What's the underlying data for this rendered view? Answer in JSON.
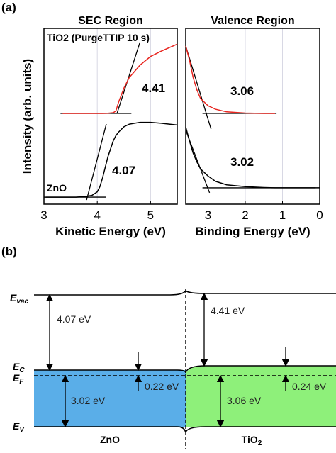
{
  "panels": [
    "(a)",
    "(b)"
  ],
  "chart_data": [
    {
      "type": "line",
      "title": "SEC Region",
      "xlabel": "Kinetic Energy (eV)",
      "ylabel": "Intensity (arb. units)",
      "x": [
        3,
        3.35,
        3.6,
        3.8,
        3.9,
        4,
        4.05,
        4.1,
        4.2,
        4.3,
        4.35,
        4.4,
        4.5,
        4.6,
        4.8,
        5,
        5.2,
        5.5
      ],
      "series": [
        {
          "name": "TiO2 (PurgeTTIP 10 s)",
          "color": "#e8251f",
          "values": [
            null,
            0.516,
            0.516,
            0.516,
            0.516,
            0.516,
            0.516,
            0.516,
            0.517,
            0.52,
            0.53,
            0.58,
            0.66,
            0.72,
            0.79,
            0.84,
            0.87,
            0.91
          ]
        },
        {
          "name": "ZnO",
          "color": "#000000",
          "values": [
            0.04,
            0.04,
            0.04,
            0.045,
            0.05,
            0.07,
            0.1,
            0.15,
            0.27,
            0.36,
            0.39,
            0.41,
            0.44,
            0.455,
            0.465,
            0.465,
            0.46,
            0.45
          ]
        }
      ],
      "fits": [
        {
          "x": [
            4.37,
            4.8
          ],
          "values": [
            0.516,
            0.92
          ]
        },
        {
          "x": [
            3.31,
            4.64
          ],
          "values": [
            0.516,
            0.516
          ]
        },
        {
          "x": [
            3.8,
            4.17
          ],
          "values": [
            0.024,
            0.456
          ]
        },
        {
          "x": [
            3.04,
            4.17
          ],
          "values": [
            0.04,
            0.04
          ]
        }
      ],
      "annotations": [
        "4.41",
        "4.07"
      ],
      "xlim": [
        3,
        5.5
      ],
      "xticks": [
        3,
        4,
        5
      ],
      "ylim": [
        0,
        1
      ],
      "grid": true
    },
    {
      "type": "line",
      "title": "Valence Region",
      "xlabel": "Binding Energy (eV)",
      "x": [
        3.6,
        3.5,
        3.4,
        3.3,
        3.2,
        3.0,
        2.8,
        2.5,
        2.0,
        1.5,
        1.2,
        0.5,
        0
      ],
      "series": [
        {
          "color": "#e8251f",
          "values": [
            0.9,
            0.82,
            0.72,
            0.65,
            0.6,
            0.56,
            0.54,
            0.525,
            0.518,
            0.516,
            0.516,
            null,
            null
          ]
        },
        {
          "color": "#000000",
          "values": [
            0.44,
            0.36,
            0.29,
            0.24,
            0.2,
            0.16,
            0.13,
            0.11,
            0.1,
            0.095,
            0.093,
            0.093,
            0.093
          ]
        }
      ],
      "fits": [
        {
          "x": [
            3.6,
            2.92
          ],
          "values": [
            0.9,
            0.427
          ]
        },
        {
          "x": [
            3.15,
            1.16
          ],
          "values": [
            0.516,
            0.516
          ]
        },
        {
          "x": [
            3.59,
            2.96
          ],
          "values": [
            0.415,
            0.065
          ]
        },
        {
          "x": [
            3.15,
            0.11
          ],
          "values": [
            0.093,
            0.093
          ]
        }
      ],
      "annotations": [
        "3.06",
        "3.02"
      ],
      "xlim": [
        3.6,
        0
      ],
      "xticks": [
        3,
        2,
        1,
        0
      ],
      "ylim": [
        0,
        1
      ],
      "grid": true
    }
  ],
  "diagram": {
    "levels": [
      {
        "symbol": "E",
        "sub": "vac"
      },
      {
        "symbol": "E",
        "sub": "C"
      },
      {
        "symbol": "E",
        "sub": "F"
      },
      {
        "symbol": "E",
        "sub": "V"
      }
    ],
    "materials": [
      {
        "name": "ZnO"
      },
      {
        "name": "TiO",
        "sub": "2"
      }
    ],
    "energies": [
      "4.07 eV",
      "3.02 eV",
      "0.22 eV",
      "4.41 eV",
      "3.06 eV",
      "0.24 eV"
    ]
  }
}
